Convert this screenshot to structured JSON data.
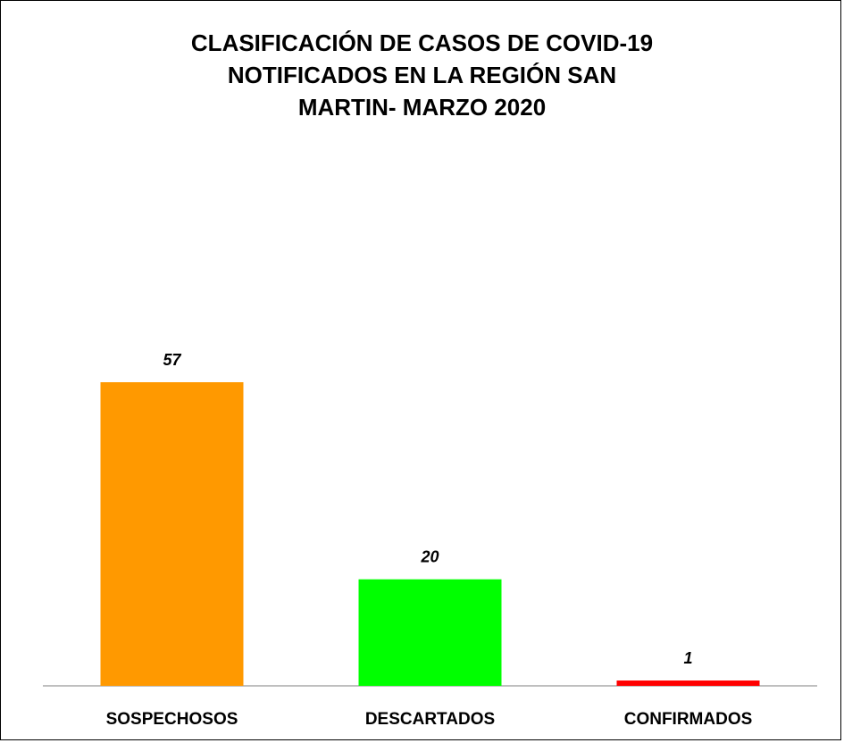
{
  "chart_data": {
    "type": "bar",
    "title": "CLASIFICACIÓN DE CASOS DE COVID-19\nNOTIFICADOS EN LA REGIÓN SAN\nMARTIN- MARZO 2020",
    "categories": [
      "SOSPECHOSOS",
      "DESCARTADOS",
      "CONFIRMADOS"
    ],
    "values": [
      57,
      20,
      1
    ],
    "colors": [
      "#ff9900",
      "#00ff00",
      "#ff0000"
    ]
  }
}
